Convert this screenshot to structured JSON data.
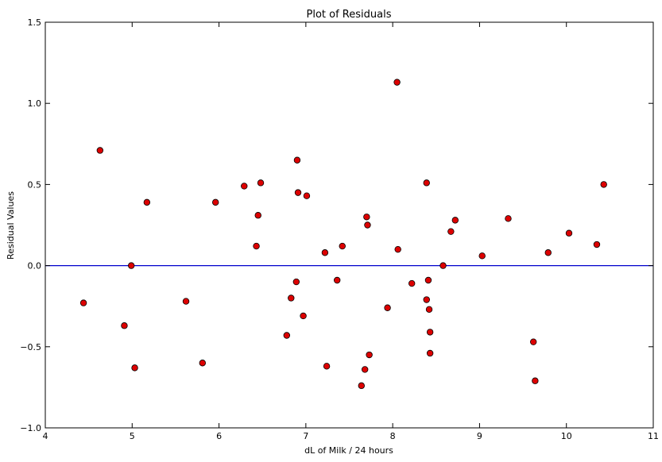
{
  "chart_data": {
    "type": "scatter",
    "title": "Plot of Residuals",
    "xlabel": "dL of Milk / 24 hours",
    "ylabel": "Residual Values",
    "xlim": [
      4,
      11
    ],
    "ylim": [
      -1.0,
      1.5
    ],
    "xticks": [
      "4",
      "5",
      "6",
      "7",
      "8",
      "9",
      "10",
      "11"
    ],
    "yticks": [
      "1.5",
      "1.0",
      "0.5",
      "0.0",
      "−0.5",
      "−1.0"
    ],
    "grid": false,
    "reference_line": {
      "y": 0.0,
      "color": "#0000cc"
    },
    "marker_color": "#dd0000",
    "marker_edge_color": "#000000",
    "series": [
      {
        "points": [
          {
            "x": 4.44,
            "y": -0.23
          },
          {
            "x": 4.63,
            "y": 0.71
          },
          {
            "x": 4.91,
            "y": -0.37
          },
          {
            "x": 4.99,
            "y": 0.0
          },
          {
            "x": 5.03,
            "y": -0.63
          },
          {
            "x": 5.17,
            "y": 0.39
          },
          {
            "x": 5.62,
            "y": -0.22
          },
          {
            "x": 5.81,
            "y": -0.6
          },
          {
            "x": 5.96,
            "y": 0.39
          },
          {
            "x": 6.29,
            "y": 0.49
          },
          {
            "x": 6.43,
            "y": 0.12
          },
          {
            "x": 6.45,
            "y": 0.31
          },
          {
            "x": 6.48,
            "y": 0.51
          },
          {
            "x": 6.78,
            "y": -0.43
          },
          {
            "x": 6.83,
            "y": -0.2
          },
          {
            "x": 6.89,
            "y": -0.1
          },
          {
            "x": 6.9,
            "y": 0.65
          },
          {
            "x": 6.91,
            "y": 0.45
          },
          {
            "x": 6.97,
            "y": -0.31
          },
          {
            "x": 7.01,
            "y": 0.43
          },
          {
            "x": 7.22,
            "y": 0.08
          },
          {
            "x": 7.24,
            "y": -0.62
          },
          {
            "x": 7.36,
            "y": -0.09
          },
          {
            "x": 7.42,
            "y": 0.12
          },
          {
            "x": 7.64,
            "y": -0.74
          },
          {
            "x": 7.68,
            "y": -0.64
          },
          {
            "x": 7.7,
            "y": 0.3
          },
          {
            "x": 7.71,
            "y": 0.25
          },
          {
            "x": 7.73,
            "y": -0.55
          },
          {
            "x": 7.94,
            "y": -0.26
          },
          {
            "x": 8.05,
            "y": 1.13
          },
          {
            "x": 8.06,
            "y": 0.1
          },
          {
            "x": 8.22,
            "y": -0.11
          },
          {
            "x": 8.39,
            "y": -0.21
          },
          {
            "x": 8.39,
            "y": 0.51
          },
          {
            "x": 8.41,
            "y": -0.09
          },
          {
            "x": 8.42,
            "y": -0.27
          },
          {
            "x": 8.43,
            "y": -0.54
          },
          {
            "x": 8.43,
            "y": -0.41
          },
          {
            "x": 8.58,
            "y": 0.0
          },
          {
            "x": 8.67,
            "y": 0.21
          },
          {
            "x": 8.72,
            "y": 0.28
          },
          {
            "x": 9.03,
            "y": 0.06
          },
          {
            "x": 9.33,
            "y": 0.29
          },
          {
            "x": 9.62,
            "y": -0.47
          },
          {
            "x": 9.64,
            "y": -0.71
          },
          {
            "x": 9.79,
            "y": 0.08
          },
          {
            "x": 10.03,
            "y": 0.2
          },
          {
            "x": 10.35,
            "y": 0.13
          },
          {
            "x": 10.43,
            "y": 0.5
          }
        ]
      }
    ]
  }
}
